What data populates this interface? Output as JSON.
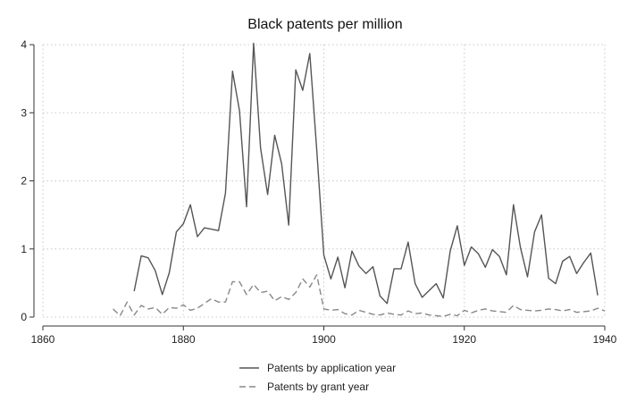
{
  "chart_data": {
    "type": "line",
    "title": "Black patents per million",
    "xlabel": "",
    "ylabel": "",
    "xlim": [
      1860,
      1940
    ],
    "ylim": [
      0,
      4
    ],
    "xticks": [
      1860,
      1880,
      1900,
      1920,
      1940
    ],
    "yticks": [
      0,
      1,
      2,
      3,
      4
    ],
    "grid": true,
    "legend_position": "bottom-center",
    "series": [
      {
        "name": "Patents by application year",
        "style": "solid",
        "color": "#555555",
        "x": [
          1873,
          1874,
          1875,
          1876,
          1877,
          1878,
          1879,
          1880,
          1881,
          1882,
          1883,
          1884,
          1885,
          1886,
          1887,
          1888,
          1889,
          1890,
          1891,
          1892,
          1893,
          1894,
          1895,
          1896,
          1897,
          1898,
          1899,
          1900,
          1901,
          1902,
          1903,
          1904,
          1905,
          1906,
          1907,
          1908,
          1909,
          1910,
          1911,
          1912,
          1913,
          1914,
          1915,
          1916,
          1917,
          1918,
          1919,
          1920,
          1921,
          1922,
          1923,
          1924,
          1925,
          1926,
          1927,
          1928,
          1929,
          1930,
          1931,
          1932,
          1933,
          1934,
          1935,
          1936,
          1937,
          1938,
          1939
        ],
        "y": [
          0.38,
          0.9,
          0.87,
          0.68,
          0.33,
          0.65,
          1.25,
          1.37,
          1.65,
          1.18,
          1.31,
          1.29,
          1.27,
          1.82,
          3.61,
          3.03,
          1.62,
          4.02,
          2.48,
          1.8,
          2.67,
          2.25,
          1.35,
          3.63,
          3.33,
          3.87,
          2.45,
          0.91,
          0.56,
          0.88,
          0.43,
          0.97,
          0.75,
          0.64,
          0.74,
          0.31,
          0.2,
          0.71,
          0.71,
          1.1,
          0.49,
          0.29,
          0.39,
          0.49,
          0.28,
          0.97,
          1.34,
          0.76,
          1.03,
          0.93,
          0.73,
          0.99,
          0.89,
          0.62,
          1.65,
          1.02,
          0.59,
          1.25,
          1.5,
          0.57,
          0.49,
          0.82,
          0.89,
          0.64,
          0.8,
          0.94,
          0.32
        ]
      },
      {
        "name": "Patents by grant year",
        "style": "dashed",
        "color": "#888888",
        "x": [
          1870,
          1871,
          1872,
          1873,
          1874,
          1875,
          1876,
          1877,
          1878,
          1879,
          1880,
          1881,
          1882,
          1883,
          1884,
          1885,
          1886,
          1887,
          1888,
          1889,
          1890,
          1891,
          1892,
          1893,
          1894,
          1895,
          1896,
          1897,
          1898,
          1899,
          1900,
          1901,
          1902,
          1903,
          1904,
          1905,
          1906,
          1907,
          1908,
          1909,
          1910,
          1911,
          1912,
          1913,
          1914,
          1915,
          1916,
          1917,
          1918,
          1919,
          1920,
          1921,
          1922,
          1923,
          1924,
          1925,
          1926,
          1927,
          1928,
          1929,
          1930,
          1931,
          1932,
          1933,
          1934,
          1935,
          1936,
          1937,
          1938,
          1939,
          1940
        ],
        "y": [
          0.12,
          0.02,
          0.22,
          0.03,
          0.17,
          0.12,
          0.14,
          0.04,
          0.14,
          0.13,
          0.18,
          0.1,
          0.13,
          0.2,
          0.27,
          0.22,
          0.22,
          0.52,
          0.52,
          0.33,
          0.48,
          0.36,
          0.38,
          0.24,
          0.3,
          0.26,
          0.36,
          0.56,
          0.44,
          0.62,
          0.12,
          0.1,
          0.11,
          0.05,
          0.03,
          0.1,
          0.07,
          0.04,
          0.03,
          0.06,
          0.04,
          0.03,
          0.09,
          0.05,
          0.06,
          0.03,
          0.02,
          0.01,
          0.04,
          0.02,
          0.1,
          0.06,
          0.1,
          0.12,
          0.09,
          0.08,
          0.07,
          0.17,
          0.11,
          0.1,
          0.09,
          0.1,
          0.12,
          0.11,
          0.09,
          0.11,
          0.07,
          0.08,
          0.09,
          0.13,
          0.09
        ]
      }
    ]
  }
}
